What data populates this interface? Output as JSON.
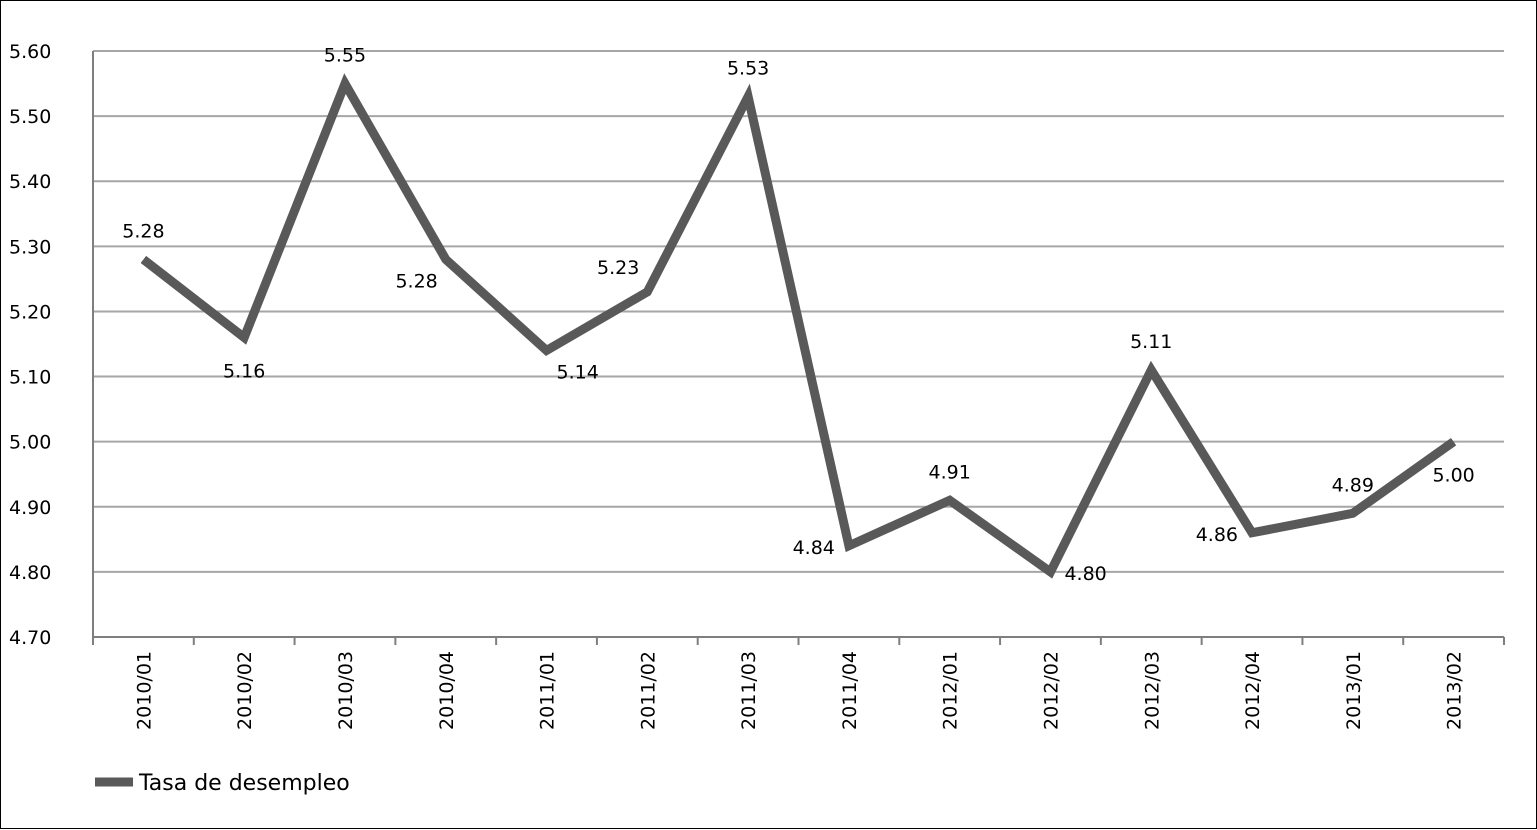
{
  "chart_data": {
    "type": "line",
    "title": "",
    "xlabel": "",
    "ylabel": "",
    "ylim": [
      4.7,
      5.6
    ],
    "ytick_step": 0.1,
    "yticks": [
      "4.70",
      "4.80",
      "4.90",
      "5.00",
      "5.10",
      "5.20",
      "5.30",
      "5.40",
      "5.50",
      "5.60"
    ],
    "grid": true,
    "legend_position": "bottom-left",
    "categories": [
      "2010/01",
      "2010/02",
      "2010/03",
      "2010/04",
      "2011/01",
      "2011/02",
      "2011/03",
      "2011/04",
      "2012/01",
      "2012/02",
      "2012/03",
      "2012/04",
      "2013/01",
      "2013/02"
    ],
    "series": [
      {
        "name": "Tasa de desempleo",
        "color": "#595959",
        "values": [
          5.28,
          5.16,
          5.55,
          5.28,
          5.14,
          5.23,
          5.53,
          4.84,
          4.91,
          4.8,
          5.11,
          4.86,
          4.89,
          5.0
        ],
        "labels": [
          "5.28",
          "5.16",
          "5.55",
          "5.28",
          "5.14",
          "5.23",
          "5.53",
          "4.84",
          "4.91",
          "4.80",
          "5.11",
          "4.86",
          "4.89",
          "5.00"
        ],
        "label_positions": [
          "above",
          "below",
          "above",
          "below-left",
          "below-right",
          "above-left",
          "above",
          "left",
          "above",
          "right",
          "above",
          "left",
          "above",
          "below"
        ]
      }
    ]
  }
}
